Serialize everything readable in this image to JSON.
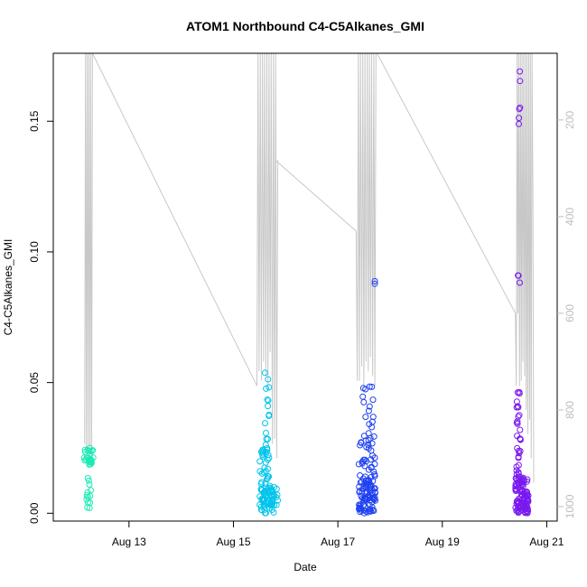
{
  "chart_data": {
    "type": "scatter",
    "title": "ATOM1 Northbound C4-C5Alkanes_GMI",
    "xlabel": "Date",
    "ylabel": "C4-C5Alkanes_GMI",
    "x_ticks": [
      "Aug 13",
      "Aug 15",
      "Aug 17",
      "Aug 19",
      "Aug 21"
    ],
    "x_tick_days": [
      13,
      15,
      17,
      19,
      21
    ],
    "xlim_days": [
      11.55,
      21.2
    ],
    "y_ticks": [
      "0.00",
      "0.05",
      "0.10",
      "0.15"
    ],
    "y_tick_values": [
      0,
      0.05,
      0.1,
      0.15
    ],
    "ylim": [
      -0.003,
      0.176
    ],
    "y2_ticks": [
      "200",
      "400",
      "600",
      "800",
      "1000"
    ],
    "y2_tick_values": [
      200,
      400,
      600,
      800,
      1000
    ],
    "y2lim": [
      1030,
      62
    ],
    "y2_series_color": "#c8c8c8",
    "grid": false,
    "series": [
      {
        "color": "#1de9b6",
        "clusters": [
          {
            "x_range": [
              12.12,
              12.32
            ],
            "y_band": [
              0.018,
              0.025
            ],
            "n": 26
          },
          {
            "x_range": [
              12.15,
              12.3
            ],
            "y_band": [
              0.004,
              0.014
            ],
            "n": 11
          },
          {
            "x_range": [
              12.2,
              12.3
            ],
            "y_band": [
              0.0,
              0.004
            ],
            "n": 2
          }
        ]
      },
      {
        "color": "#00c4ec",
        "clusters": [
          {
            "x_range": [
              15.5,
              15.85
            ],
            "y_band": [
              0.0,
              0.01
            ],
            "n": 65
          },
          {
            "x_range": [
              15.5,
              15.7
            ],
            "y_band": [
              0.01,
              0.025
            ],
            "n": 30
          },
          {
            "x_range": [
              15.6,
              15.7
            ],
            "y_band": [
              0.025,
              0.054
            ],
            "n": 14
          }
        ]
      },
      {
        "color": "#1e40f0",
        "clusters": [
          {
            "x_range": [
              17.4,
              17.72
            ],
            "y_band": [
              0.0,
              0.012
            ],
            "n": 70
          },
          {
            "x_range": [
              17.4,
              17.72
            ],
            "y_band": [
              0.012,
              0.03
            ],
            "n": 40
          },
          {
            "x_range": [
              17.45,
              17.7
            ],
            "y_band": [
              0.03,
              0.052
            ],
            "n": 15
          },
          {
            "x_range": [
              17.7,
              17.73
            ],
            "y_band": [
              0.068,
              0.091
            ],
            "n": 2
          }
        ]
      },
      {
        "color": "#7a19f0",
        "clusters": [
          {
            "x_range": [
              20.4,
              20.65
            ],
            "y_band": [
              0.0,
              0.007
            ],
            "n": 70
          },
          {
            "x_range": [
              20.4,
              20.65
            ],
            "y_band": [
              0.007,
              0.014
            ],
            "n": 40
          },
          {
            "x_range": [
              20.42,
              20.5
            ],
            "y_band": [
              0.014,
              0.05
            ],
            "n": 30
          },
          {
            "x_range": [
              20.44,
              20.49
            ],
            "y_band": [
              0.087,
              0.093
            ],
            "n": 3
          },
          {
            "x_range": [
              20.46,
              20.49
            ],
            "y_band": [
              0.148,
              0.17
            ],
            "n": 6
          }
        ]
      }
    ],
    "secondary_line": {
      "color": "#c8c8c8",
      "segments": [
        {
          "from": [
            12.3,
            60
          ],
          "to": [
            15.45,
            750
          ]
        },
        {
          "from": [
            15.8,
            283
          ],
          "to": [
            17.35,
            430
          ]
        },
        {
          "from": [
            17.75,
            62
          ],
          "to": [
            20.4,
            600
          ]
        }
      ],
      "bursts": [
        {
          "x_range": [
            12.15,
            12.3
          ],
          "ys": [
            870,
            60,
            880,
            60,
            890,
            60,
            900,
            60,
            915,
            60
          ]
        },
        {
          "x_range": [
            15.45,
            15.85
          ],
          "ys": [
            750,
            60,
            720,
            60,
            740,
            60,
            700,
            60,
            730,
            60,
            760,
            60,
            680,
            60,
            870,
            60,
            860,
            60,
            900,
            283
          ]
        },
        {
          "x_range": [
            17.35,
            17.75
          ],
          "ys": [
            430,
            740,
            60,
            740,
            60,
            710,
            60,
            760,
            60,
            700,
            60,
            720,
            60,
            690,
            60,
            730,
            60,
            750,
            60,
            62
          ]
        },
        {
          "x_range": [
            20.4,
            20.75
          ],
          "ys": [
            600,
            750,
            60,
            600,
            60,
            750,
            60,
            740,
            60,
            700,
            60,
            730,
            60,
            800,
            60,
            850,
            60,
            820,
            60,
            900,
            60,
            360,
            950
          ]
        }
      ]
    }
  }
}
